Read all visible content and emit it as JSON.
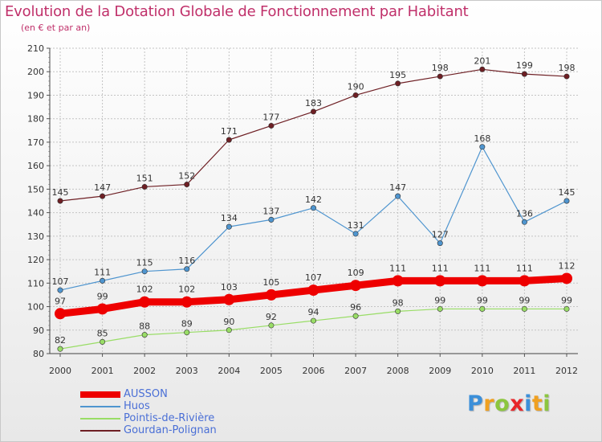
{
  "header": {
    "title": "Evolution de la Dotation Globale de Fonctionnement par Habitant",
    "subtitle": "(en € et par an)"
  },
  "chart_data": {
    "type": "line",
    "title": "Evolution de la Dotation Globale de Fonctionnement par Habitant",
    "subtitle": "(en € et par an)",
    "xlabel": "",
    "ylabel": "",
    "x": [
      "2000",
      "2001",
      "2002",
      "2003",
      "2004",
      "2005",
      "2006",
      "2007",
      "2008",
      "2009",
      "2010",
      "2011",
      "2012"
    ],
    "ylim": [
      80,
      210
    ],
    "yticks": [
      80,
      90,
      100,
      110,
      120,
      130,
      140,
      150,
      160,
      170,
      180,
      190,
      200,
      210
    ],
    "grid": true,
    "legend_position": "bottom-left",
    "series": [
      {
        "name": "AUSSON",
        "color": "#ee0000",
        "emphasis": true,
        "values": [
          97,
          99,
          102,
          102,
          103,
          105,
          107,
          109,
          111,
          111,
          111,
          111,
          112
        ]
      },
      {
        "name": "Huos",
        "color": "#4f95cf",
        "emphasis": false,
        "values": [
          107,
          111,
          115,
          116,
          134,
          137,
          142,
          131,
          147,
          127,
          168,
          136,
          145
        ]
      },
      {
        "name": "Pointis-de-Rivière",
        "color": "#99dd66",
        "emphasis": false,
        "values": [
          82,
          85,
          88,
          89,
          90,
          92,
          94,
          96,
          98,
          99,
          99,
          99,
          99
        ]
      },
      {
        "name": "Gourdan-Polignan",
        "color": "#6e1f24",
        "emphasis": false,
        "values": [
          145,
          147,
          151,
          152,
          171,
          177,
          183,
          190,
          195,
          198,
          201,
          199,
          198
        ]
      }
    ]
  },
  "logo": {
    "letters": [
      {
        "ch": "P",
        "color": "#3b8fd9"
      },
      {
        "ch": "r",
        "color": "#f0a020"
      },
      {
        "ch": "o",
        "color": "#8cc63f"
      },
      {
        "ch": "x",
        "color": "#e8262a"
      },
      {
        "ch": "i",
        "color": "#3b8fd9"
      },
      {
        "ch": "t",
        "color": "#f0a020"
      },
      {
        "ch": "i",
        "color": "#8cc63f"
      }
    ]
  }
}
